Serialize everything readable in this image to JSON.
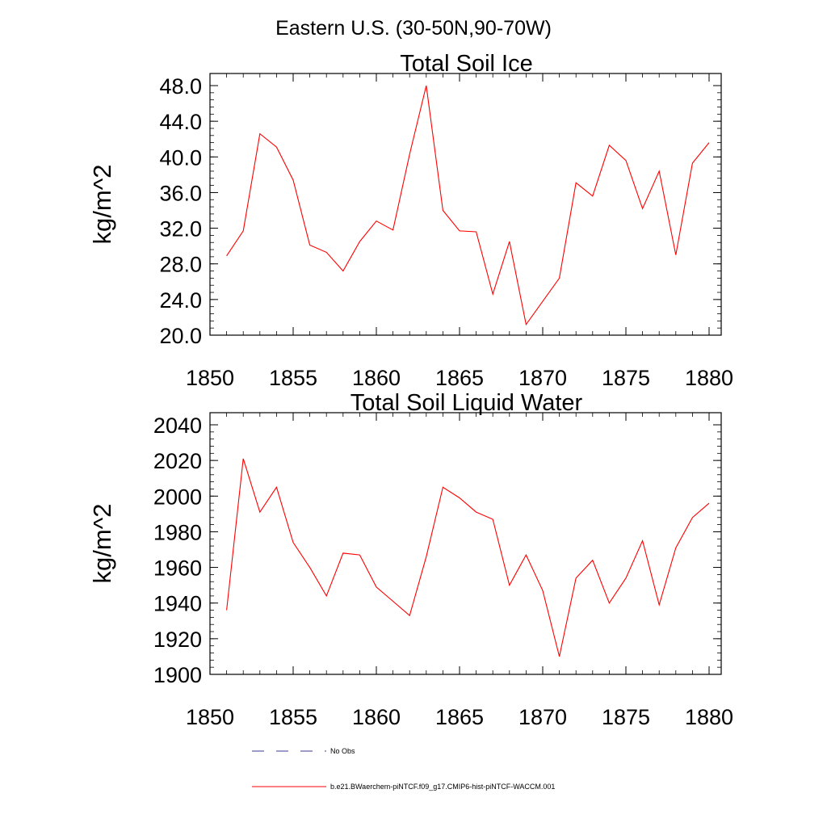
{
  "suptitle": "Eastern U.S. (30-50N,90-70W)",
  "colors": {
    "series": "#ff0000",
    "obs": "#3b3b8f",
    "axis": "#000000",
    "background": "#ffffff"
  },
  "legend": [
    {
      "label": "No Obs",
      "style": "dashed",
      "color": "#3b3b8f"
    },
    {
      "label": "b.e21.BWaerchem-piNTCF.f09_g17.CMIP6-hist-piNTCF-WACCM.001",
      "style": "solid",
      "color": "#ff0000"
    }
  ],
  "chart_data": [
    {
      "type": "line",
      "title": "Total Soil Ice",
      "xlabel": "",
      "ylabel": "kg/m^2",
      "xlim": [
        1850,
        1880
      ],
      "ylim": [
        20,
        48
      ],
      "xticks": [
        1850,
        1855,
        1860,
        1865,
        1870,
        1875,
        1880
      ],
      "xtick_labels": [
        "1850",
        "1855",
        "1860",
        "1865",
        "1870",
        "1875",
        "1880"
      ],
      "yticks": [
        20,
        24,
        28,
        32,
        36,
        40,
        44,
        48
      ],
      "ytick_labels": [
        "20.0",
        "24.0",
        "28.0",
        "32.0",
        "36.0",
        "40.0",
        "44.0",
        "48.0"
      ],
      "grid": false,
      "series": [
        {
          "name": "b.e21.BWaerchem-piNTCF.f09_g17.CMIP6-hist-piNTCF-WACCM.001",
          "x": [
            1851,
            1852,
            1853,
            1854,
            1855,
            1856,
            1857,
            1858,
            1859,
            1860,
            1861,
            1862,
            1863,
            1864,
            1865,
            1866,
            1867,
            1868,
            1869,
            1870,
            1871,
            1872,
            1873,
            1874,
            1875,
            1876,
            1877,
            1878,
            1879,
            1880
          ],
          "y": [
            28.9,
            31.7,
            42.6,
            41.1,
            37.4,
            30.1,
            29.3,
            27.2,
            30.5,
            32.8,
            31.8,
            40.3,
            48.0,
            34.0,
            31.7,
            31.6,
            24.6,
            30.5,
            21.2,
            23.8,
            26.4,
            37.1,
            35.6,
            41.3,
            39.6,
            34.2,
            38.4,
            29.0,
            39.3,
            41.6
          ]
        }
      ]
    },
    {
      "type": "line",
      "title": "Total Soil Liquid Water",
      "xlabel": "",
      "ylabel": "kg/m^2",
      "xlim": [
        1850,
        1880
      ],
      "ylim": [
        1900,
        2040
      ],
      "xticks": [
        1850,
        1855,
        1860,
        1865,
        1870,
        1875,
        1880
      ],
      "xtick_labels": [
        "1850",
        "1855",
        "1860",
        "1865",
        "1870",
        "1875",
        "1880"
      ],
      "yticks": [
        1900,
        1920,
        1940,
        1960,
        1980,
        2000,
        2020,
        2040
      ],
      "ytick_labels": [
        "1900",
        "1920",
        "1940",
        "1960",
        "1980",
        "2000",
        "2020",
        "2040"
      ],
      "grid": false,
      "series": [
        {
          "name": "b.e21.BWaerchem-piNTCF.f09_g17.CMIP6-hist-piNTCF-WACCM.001",
          "x": [
            1851,
            1852,
            1853,
            1854,
            1855,
            1856,
            1857,
            1858,
            1859,
            1860,
            1861,
            1862,
            1863,
            1864,
            1865,
            1866,
            1867,
            1868,
            1869,
            1870,
            1871,
            1872,
            1873,
            1874,
            1875,
            1876,
            1877,
            1878,
            1879,
            1880
          ],
          "y": [
            1936,
            2021,
            1991,
            2005,
            1974,
            1960,
            1944,
            1968,
            1967,
            1949,
            1941,
            1933,
            1966,
            2005,
            1999,
            1991,
            1987,
            1950,
            1967,
            1947,
            1910,
            1954,
            1964,
            1940,
            1954,
            1975,
            1939,
            1971,
            1988,
            1996
          ]
        }
      ]
    }
  ]
}
